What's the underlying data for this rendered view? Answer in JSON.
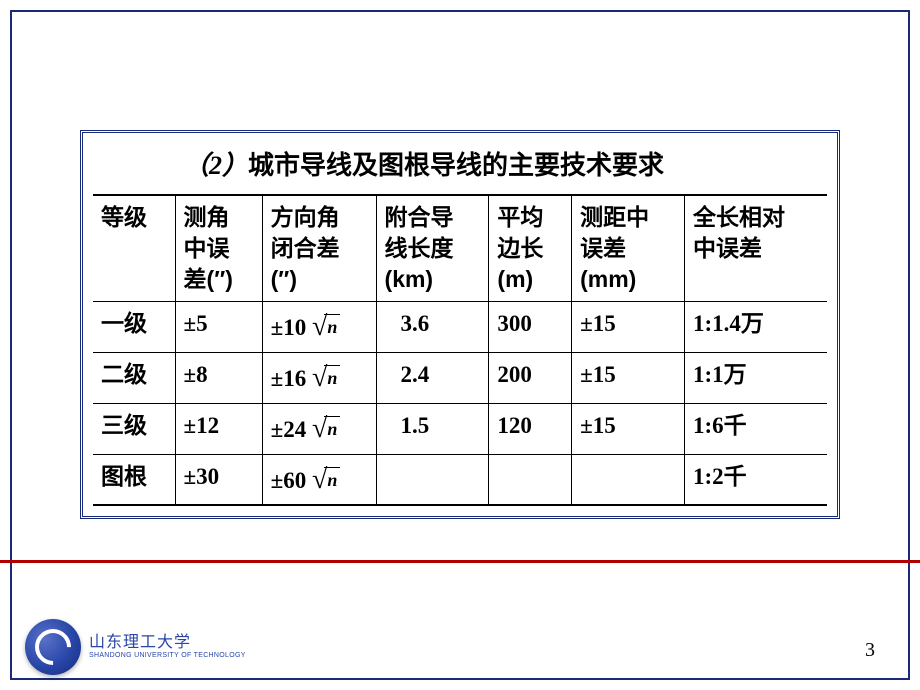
{
  "title": {
    "num": "（2）",
    "text": "城市导线及图根导线的主要技术要求"
  },
  "table": {
    "headers": [
      "等级",
      "测角中误差(″)",
      "方向角闭合差(″)",
      "附合导线长度(km)",
      "平均边长(m)",
      "测距中误差(mm)",
      "全长相对中误差"
    ],
    "rows": [
      {
        "grade": "一级",
        "angle_err": "±5",
        "closure": "±10",
        "has_sqrt": true,
        "length": "3.6",
        "avg_side": "300",
        "dist_err": "±15",
        "rel_err": "1:1.4万"
      },
      {
        "grade": "二级",
        "angle_err": "±8",
        "closure": "±16",
        "has_sqrt": true,
        "length": "2.4",
        "avg_side": "200",
        "dist_err": "±15",
        "rel_err": "1:1万"
      },
      {
        "grade": "三级",
        "angle_err": "±12",
        "closure": "±24",
        "has_sqrt": true,
        "length": "1.5",
        "avg_side": "120",
        "dist_err": "±15",
        "rel_err": "1:6千"
      },
      {
        "grade": "图根",
        "angle_err": "±30",
        "closure": "±60",
        "has_sqrt": true,
        "length": "",
        "avg_side": "",
        "dist_err": "",
        "rel_err": "1:2千"
      }
    ]
  },
  "colors": {
    "frame": "#1a2a7a",
    "red_line": "#b00000",
    "text": "#000000",
    "logo_bg": "#2846a8"
  },
  "logo": {
    "name_zh": "山东理工大学",
    "name_en": "SHANDONG UNIVERSITY OF TECHNOLOGY"
  },
  "page_number": "3",
  "sqrt_variable": "n"
}
